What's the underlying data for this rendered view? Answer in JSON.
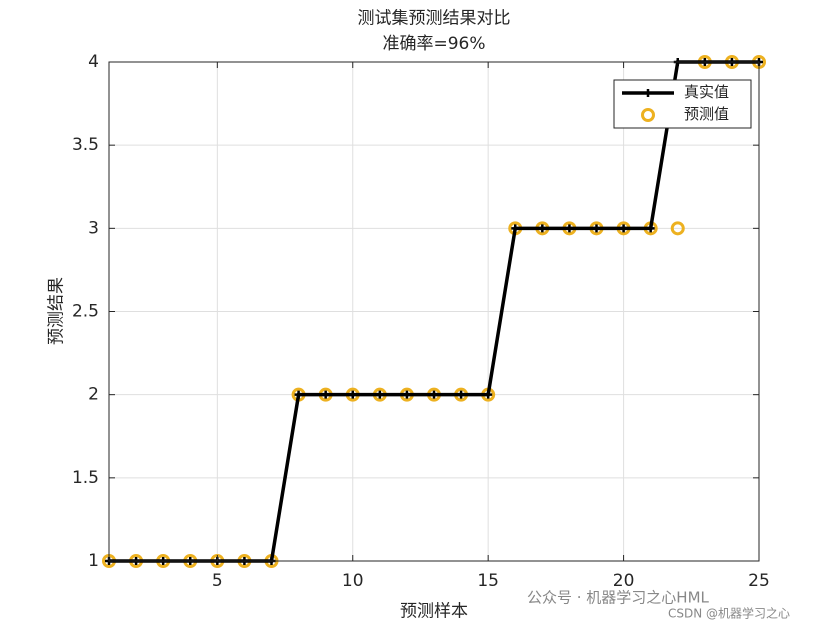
{
  "chart_data": {
    "type": "line",
    "title": [
      "测试集预测结果对比",
      "准确率=96%"
    ],
    "x_label": "预测样本",
    "y_label": "预测结果",
    "x": [
      1,
      2,
      3,
      4,
      5,
      6,
      7,
      8,
      9,
      10,
      11,
      12,
      13,
      14,
      15,
      16,
      17,
      18,
      19,
      20,
      21,
      22,
      23,
      24,
      25
    ],
    "series": [
      {
        "name": "真实值",
        "color": "#000000",
        "marker": "+",
        "line": true,
        "values": [
          1,
          1,
          1,
          1,
          1,
          1,
          1,
          2,
          2,
          2,
          2,
          2,
          2,
          2,
          2,
          3,
          3,
          3,
          3,
          3,
          3,
          4,
          4,
          4,
          4
        ]
      },
      {
        "name": "预测值",
        "color": "#EDB120",
        "marker": "o",
        "line": false,
        "values": [
          1,
          1,
          1,
          1,
          1,
          1,
          1,
          2,
          2,
          2,
          2,
          2,
          2,
          2,
          2,
          3,
          3,
          3,
          3,
          3,
          3,
          3,
          4,
          4,
          4
        ]
      }
    ],
    "xlim": [
      1,
      25
    ],
    "xticks": [
      5,
      10,
      15,
      20,
      25
    ],
    "ylim": [
      1,
      4
    ],
    "yticks": [
      1,
      1.5,
      2,
      2.5,
      3,
      3.5,
      4
    ],
    "grid": true,
    "legend": "upper-right",
    "watermark": [
      "公众号 · 机器学习之心HML",
      "CSDN @机器学习之心"
    ]
  }
}
